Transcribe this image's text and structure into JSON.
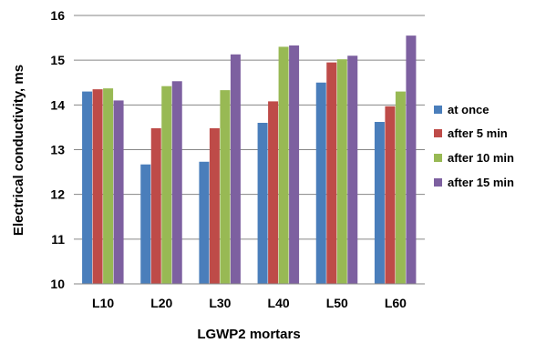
{
  "chart_data": {
    "type": "bar",
    "title": "",
    "xlabel": "LGWP2 mortars",
    "ylabel": "Electrical conductivity, ms",
    "categories": [
      "L10",
      "L20",
      "L30",
      "L40",
      "L50",
      "L60"
    ],
    "ylim": [
      10,
      16
    ],
    "yticks": [
      10,
      11,
      12,
      13,
      14,
      15,
      16
    ],
    "grid": "horizontal",
    "legend_position": "right",
    "series": [
      {
        "name": "at once",
        "color": "#4a7ebb",
        "values": [
          14.3,
          12.67,
          12.73,
          13.6,
          14.5,
          13.62
        ]
      },
      {
        "name": "after 5 min",
        "color": "#be4b48",
        "values": [
          14.35,
          13.48,
          13.48,
          14.08,
          14.95,
          13.97
        ]
      },
      {
        "name": "after 10 min",
        "color": "#98b954",
        "values": [
          14.37,
          14.42,
          14.33,
          15.3,
          15.02,
          14.3
        ]
      },
      {
        "name": "after 15 min",
        "color": "#7d60a0",
        "values": [
          14.1,
          14.53,
          15.13,
          15.33,
          15.1,
          15.55
        ]
      }
    ]
  }
}
